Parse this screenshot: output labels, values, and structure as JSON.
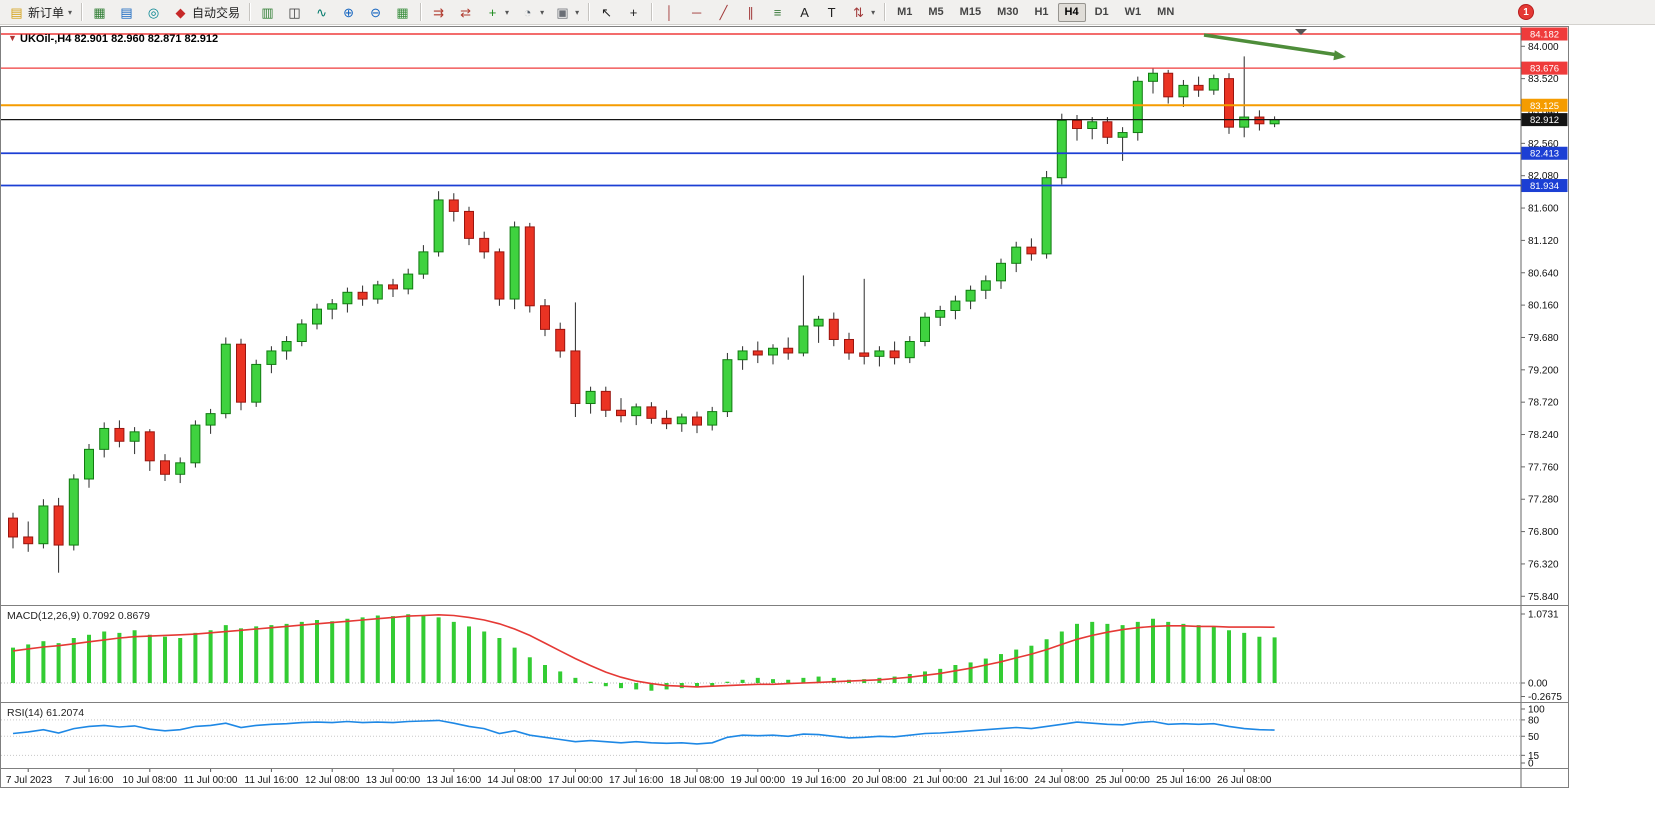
{
  "toolbar": {
    "notification_badge": "1",
    "active_timeframe": "H4",
    "timeframes": [
      "M1",
      "M5",
      "M15",
      "M30",
      "H1",
      "H4",
      "D1",
      "W1",
      "MN"
    ],
    "items": [
      {
        "type": "button",
        "name": "new-order",
        "glyph": "▤",
        "color": "#d4a017",
        "label": "新订单",
        "caret": true
      },
      {
        "type": "sep"
      },
      {
        "type": "button",
        "name": "charts",
        "glyph": "▦",
        "color": "#2e7d32"
      },
      {
        "type": "button",
        "name": "market-watch",
        "glyph": "▤",
        "color": "#1565c0"
      },
      {
        "type": "button",
        "name": "navigator",
        "glyph": "◎",
        "color": "#00838f"
      },
      {
        "type": "button",
        "name": "auto-trading",
        "glyph": "◆",
        "color": "#c62828",
        "label": "自动交易"
      },
      {
        "type": "sep"
      },
      {
        "type": "button",
        "name": "bar-chart-type",
        "glyph": "▥",
        "color": "#2e7d32"
      },
      {
        "type": "button",
        "name": "candlestick-type",
        "glyph": "◫",
        "color": "#333333"
      },
      {
        "type": "button",
        "name": "line-chart-type",
        "glyph": "∿",
        "color": "#00796b"
      },
      {
        "type": "button",
        "name": "zoom-in",
        "glyph": "⊕",
        "color": "#1565c0"
      },
      {
        "type": "button",
        "name": "zoom-out",
        "glyph": "⊖",
        "color": "#1565c0"
      },
      {
        "type": "button",
        "name": "tile-windows",
        "glyph": "▦",
        "color": "#388e3c"
      },
      {
        "type": "sep"
      },
      {
        "type": "button",
        "name": "auto-scroll",
        "glyph": "⇉",
        "color": "#b03a2e"
      },
      {
        "type": "button",
        "name": "chart-shift",
        "glyph": "⇄",
        "color": "#b03a2e"
      },
      {
        "type": "button",
        "name": "indicators",
        "glyph": "+",
        "color": "#1b8a1b",
        "caret": true
      },
      {
        "type": "button",
        "name": "periods",
        "glyph": "◔",
        "color": "#55606b",
        "caret": true
      },
      {
        "type": "button",
        "name": "templates",
        "glyph": "▣",
        "color": "#6b6f76",
        "caret": true
      },
      {
        "type": "sep"
      },
      {
        "type": "button",
        "name": "cursor-tool",
        "glyph": "↖",
        "color": "#222222"
      },
      {
        "type": "button",
        "name": "crosshair-tool",
        "glyph": "+",
        "color": "#222222"
      },
      {
        "type": "sep"
      },
      {
        "type": "button",
        "name": "vertical-line-tool",
        "glyph": "│",
        "color": "#a23b3b"
      },
      {
        "type": "button",
        "name": "horizontal-line-tool",
        "glyph": "─",
        "color": "#a23b3b"
      },
      {
        "type": "button",
        "name": "trendline-tool",
        "glyph": "╱",
        "color": "#a23b3b"
      },
      {
        "type": "button",
        "name": "channel-tool",
        "glyph": "∥",
        "color": "#a23b3b"
      },
      {
        "type": "button",
        "name": "fibonacci-tool",
        "glyph": "≡",
        "color": "#3a7a3a"
      },
      {
        "type": "button",
        "name": "text-tool",
        "glyph": "A",
        "color": "#222222"
      },
      {
        "type": "button",
        "name": "label-tool",
        "glyph": "T",
        "color": "#222222"
      },
      {
        "type": "button",
        "name": "arrows-tool",
        "glyph": "⇅",
        "color": "#a23b3b",
        "caret": true
      },
      {
        "type": "sep"
      },
      {
        "type": "timeframes"
      }
    ]
  },
  "chart": {
    "title": "UKOil-,H4  82.901 82.960 82.871 82.912",
    "symbol": "UKOil-",
    "timeframe": "H4"
  },
  "chart_data": {
    "type": "candlestick",
    "symbol": "UKOil-",
    "timeframe": "H4",
    "ohlc_current": {
      "open": 82.901,
      "high": 82.96,
      "low": 82.871,
      "close": 82.912
    },
    "price_axis_labels": [
      "84.000",
      "83.520",
      "83.040",
      "82.560",
      "82.080",
      "81.600",
      "81.120",
      "80.640",
      "80.160",
      "79.680",
      "79.200",
      "78.720",
      "78.240",
      "77.760",
      "77.280",
      "76.800",
      "76.320",
      "75.840"
    ],
    "horizontal_lines": [
      {
        "label": "84.182",
        "price": 84.182,
        "color": "#ef3b3b",
        "width": 1.4
      },
      {
        "label": "83.676",
        "price": 83.676,
        "color": "#ef3b3b",
        "width": 1.2
      },
      {
        "label": "83.125",
        "price": 83.125,
        "color": "#f59c00",
        "width": 2
      },
      {
        "label": "82.912",
        "price": 82.912,
        "color": "#141414",
        "width": 1.2,
        "role": "bid-price"
      },
      {
        "label": "82.413",
        "price": 82.413,
        "color": "#1c3fd4",
        "width": 1.8
      },
      {
        "label": "81.934",
        "price": 81.934,
        "color": "#1c3fd4",
        "width": 1.8
      }
    ],
    "x_labels": [
      "7 Jul 2023",
      "7 Jul 16:00",
      "10 Jul 08:00",
      "11 Jul 00:00",
      "11 Jul 16:00",
      "12 Jul 08:00",
      "13 Jul 00:00",
      "13 Jul 16:00",
      "14 Jul 08:00",
      "17 Jul 00:00",
      "17 Jul 16:00",
      "18 Jul 08:00",
      "19 Jul 00:00",
      "19 Jul 16:00",
      "20 Jul 08:00",
      "21 Jul 00:00",
      "21 Jul 16:00",
      "24 Jul 08:00",
      "25 Jul 00:00",
      "25 Jul 16:00",
      "26 Jul 08:00"
    ],
    "candles": [
      [
        77.0,
        77.08,
        76.55,
        76.72
      ],
      [
        76.72,
        76.95,
        76.5,
        76.62
      ],
      [
        76.62,
        77.28,
        76.55,
        77.18
      ],
      [
        77.18,
        77.3,
        76.19,
        76.6
      ],
      [
        76.6,
        77.65,
        76.52,
        77.58
      ],
      [
        77.58,
        78.1,
        77.45,
        78.02
      ],
      [
        78.02,
        78.42,
        77.9,
        78.33
      ],
      [
        78.33,
        78.45,
        78.05,
        78.14
      ],
      [
        78.14,
        78.35,
        77.95,
        78.28
      ],
      [
        78.28,
        78.32,
        77.7,
        77.85
      ],
      [
        77.85,
        77.95,
        77.55,
        77.65
      ],
      [
        77.65,
        77.9,
        77.52,
        77.82
      ],
      [
        77.82,
        78.45,
        77.75,
        78.38
      ],
      [
        78.38,
        78.62,
        78.25,
        78.55
      ],
      [
        78.55,
        79.68,
        78.48,
        79.58
      ],
      [
        79.58,
        79.66,
        78.6,
        78.72
      ],
      [
        78.72,
        79.35,
        78.65,
        79.28
      ],
      [
        79.28,
        79.55,
        79.15,
        79.48
      ],
      [
        79.48,
        79.7,
        79.35,
        79.62
      ],
      [
        79.62,
        79.95,
        79.55,
        79.88
      ],
      [
        79.88,
        80.18,
        79.8,
        80.1
      ],
      [
        80.1,
        80.25,
        79.95,
        80.18
      ],
      [
        80.18,
        80.42,
        80.05,
        80.35
      ],
      [
        80.35,
        80.45,
        80.15,
        80.25
      ],
      [
        80.25,
        80.52,
        80.18,
        80.46
      ],
      [
        80.46,
        80.55,
        80.28,
        80.4
      ],
      [
        80.4,
        80.7,
        80.32,
        80.62
      ],
      [
        80.62,
        81.05,
        80.55,
        80.95
      ],
      [
        80.95,
        81.85,
        80.88,
        81.72
      ],
      [
        81.72,
        81.82,
        81.4,
        81.55
      ],
      [
        81.55,
        81.62,
        81.05,
        81.15
      ],
      [
        81.15,
        81.25,
        80.85,
        80.95
      ],
      [
        80.95,
        81.0,
        80.15,
        80.25
      ],
      [
        80.25,
        81.4,
        80.1,
        81.32
      ],
      [
        81.32,
        81.38,
        80.05,
        80.15
      ],
      [
        80.15,
        80.25,
        79.7,
        79.8
      ],
      [
        79.8,
        79.9,
        79.38,
        79.48
      ],
      [
        79.48,
        80.2,
        78.5,
        78.7
      ],
      [
        78.7,
        78.95,
        78.55,
        78.88
      ],
      [
        78.88,
        78.95,
        78.5,
        78.6
      ],
      [
        78.6,
        78.78,
        78.42,
        78.52
      ],
      [
        78.52,
        78.7,
        78.38,
        78.65
      ],
      [
        78.65,
        78.72,
        78.4,
        78.48
      ],
      [
        78.48,
        78.6,
        78.32,
        78.4
      ],
      [
        78.4,
        78.55,
        78.28,
        78.5
      ],
      [
        78.5,
        78.58,
        78.26,
        78.38
      ],
      [
        78.38,
        78.65,
        78.3,
        78.58
      ],
      [
        78.58,
        79.45,
        78.5,
        79.35
      ],
      [
        79.35,
        79.55,
        79.2,
        79.48
      ],
      [
        79.48,
        79.62,
        79.3,
        79.42
      ],
      [
        79.42,
        79.58,
        79.28,
        79.52
      ],
      [
        79.52,
        79.68,
        79.35,
        79.45
      ],
      [
        79.45,
        80.6,
        79.4,
        79.85
      ],
      [
        79.85,
        80.0,
        79.6,
        79.95
      ],
      [
        79.95,
        80.05,
        79.55,
        79.65
      ],
      [
        79.65,
        79.75,
        79.35,
        79.45
      ],
      [
        79.45,
        80.55,
        79.28,
        79.4
      ],
      [
        79.4,
        79.55,
        79.25,
        79.48
      ],
      [
        79.48,
        79.62,
        79.28,
        79.38
      ],
      [
        79.38,
        79.7,
        79.3,
        79.62
      ],
      [
        79.62,
        80.05,
        79.55,
        79.98
      ],
      [
        79.98,
        80.15,
        79.85,
        80.08
      ],
      [
        80.08,
        80.3,
        79.95,
        80.22
      ],
      [
        80.22,
        80.45,
        80.1,
        80.38
      ],
      [
        80.38,
        80.6,
        80.25,
        80.52
      ],
      [
        80.52,
        80.85,
        80.4,
        80.78
      ],
      [
        80.78,
        81.1,
        80.65,
        81.02
      ],
      [
        81.02,
        81.15,
        80.82,
        80.92
      ],
      [
        80.92,
        82.15,
        80.85,
        82.05
      ],
      [
        82.05,
        83.0,
        81.95,
        82.9
      ],
      [
        82.9,
        82.98,
        82.6,
        82.78
      ],
      [
        82.78,
        82.95,
        82.62,
        82.88
      ],
      [
        82.88,
        82.95,
        82.55,
        82.65
      ],
      [
        82.65,
        82.8,
        82.3,
        82.72
      ],
      [
        82.72,
        83.55,
        82.6,
        83.48
      ],
      [
        83.48,
        83.68,
        83.3,
        83.6
      ],
      [
        83.6,
        83.65,
        83.15,
        83.25
      ],
      [
        83.25,
        83.5,
        83.1,
        83.42
      ],
      [
        83.42,
        83.55,
        83.25,
        83.35
      ],
      [
        83.35,
        83.58,
        83.28,
        83.52
      ],
      [
        83.52,
        83.6,
        82.7,
        82.8
      ],
      [
        82.8,
        83.85,
        82.65,
        82.95
      ],
      [
        82.95,
        83.05,
        82.75,
        82.85
      ],
      [
        82.85,
        82.96,
        82.8,
        82.912
      ]
    ],
    "macd": {
      "label": "MACD(12,26,9) 0.7092 0.8679",
      "value": 0.7092,
      "signal_value": 0.8679,
      "axis_labels": [
        "1.0731",
        "0.00",
        "-0.2675"
      ],
      "histogram": [
        0.55,
        0.6,
        0.65,
        0.62,
        0.7,
        0.75,
        0.8,
        0.78,
        0.82,
        0.75,
        0.72,
        0.7,
        0.78,
        0.82,
        0.9,
        0.85,
        0.88,
        0.9,
        0.92,
        0.95,
        0.98,
        0.96,
        1.0,
        1.02,
        1.05,
        1.04,
        1.07,
        1.05,
        1.02,
        0.95,
        0.88,
        0.8,
        0.7,
        0.55,
        0.4,
        0.28,
        0.18,
        0.08,
        0.02,
        -0.05,
        -0.08,
        -0.1,
        -0.12,
        -0.1,
        -0.08,
        -0.06,
        -0.04,
        0.02,
        0.05,
        0.08,
        0.06,
        0.05,
        0.08,
        0.1,
        0.08,
        0.05,
        0.06,
        0.08,
        0.1,
        0.14,
        0.18,
        0.22,
        0.28,
        0.32,
        0.38,
        0.45,
        0.52,
        0.58,
        0.68,
        0.8,
        0.92,
        0.95,
        0.92,
        0.9,
        0.95,
        1.0,
        0.95,
        0.92,
        0.9,
        0.88,
        0.82,
        0.78,
        0.72,
        0.7092
      ],
      "signal": [
        0.5,
        0.53,
        0.56,
        0.58,
        0.61,
        0.64,
        0.67,
        0.7,
        0.72,
        0.73,
        0.74,
        0.75,
        0.76,
        0.78,
        0.8,
        0.82,
        0.84,
        0.86,
        0.88,
        0.9,
        0.92,
        0.94,
        0.96,
        0.98,
        1.0,
        1.02,
        1.04,
        1.05,
        1.06,
        1.05,
        1.02,
        0.98,
        0.92,
        0.84,
        0.74,
        0.62,
        0.5,
        0.38,
        0.27,
        0.17,
        0.09,
        0.03,
        -0.01,
        -0.04,
        -0.05,
        -0.06,
        -0.05,
        -0.04,
        -0.03,
        -0.02,
        -0.02,
        -0.01,
        0.0,
        0.01,
        0.02,
        0.03,
        0.04,
        0.05,
        0.07,
        0.09,
        0.12,
        0.15,
        0.19,
        0.23,
        0.28,
        0.33,
        0.39,
        0.45,
        0.52,
        0.6,
        0.68,
        0.74,
        0.79,
        0.83,
        0.86,
        0.88,
        0.89,
        0.89,
        0.88,
        0.88,
        0.87,
        0.87,
        0.87,
        0.8679
      ]
    },
    "rsi": {
      "label": "RSI(14) 61.2074",
      "value": 61.2074,
      "axis_labels": [
        "100",
        "80",
        "50",
        "15",
        "0"
      ],
      "levels": [
        80,
        50,
        15
      ],
      "values": [
        55,
        58,
        62,
        56,
        64,
        68,
        70,
        67,
        69,
        63,
        60,
        62,
        68,
        70,
        74,
        66,
        70,
        72,
        73,
        75,
        76,
        75,
        77,
        75,
        76,
        75,
        77,
        78,
        79,
        74,
        68,
        64,
        55,
        60,
        52,
        48,
        44,
        40,
        42,
        40,
        38,
        40,
        38,
        37,
        38,
        36,
        38,
        48,
        52,
        51,
        52,
        50,
        54,
        53,
        50,
        47,
        48,
        50,
        49,
        52,
        55,
        56,
        58,
        60,
        62,
        64,
        66,
        64,
        68,
        72,
        76,
        74,
        72,
        71,
        75,
        77,
        72,
        73,
        72,
        73,
        68,
        64,
        62,
        61.2
      ]
    }
  },
  "colors": {
    "bull": "#3fd23f",
    "bull_border": "#117a11",
    "bear": "#ea3323",
    "bear_border": "#9a150f",
    "wick": "#2b2b2b",
    "macd_histogram": "#33cc33",
    "macd_signal": "#e53935",
    "rsi_line": "#1e88e5",
    "trend_arrow": "#4e8d3a",
    "axis_text": "#111111",
    "title_marker": "#b03434"
  }
}
